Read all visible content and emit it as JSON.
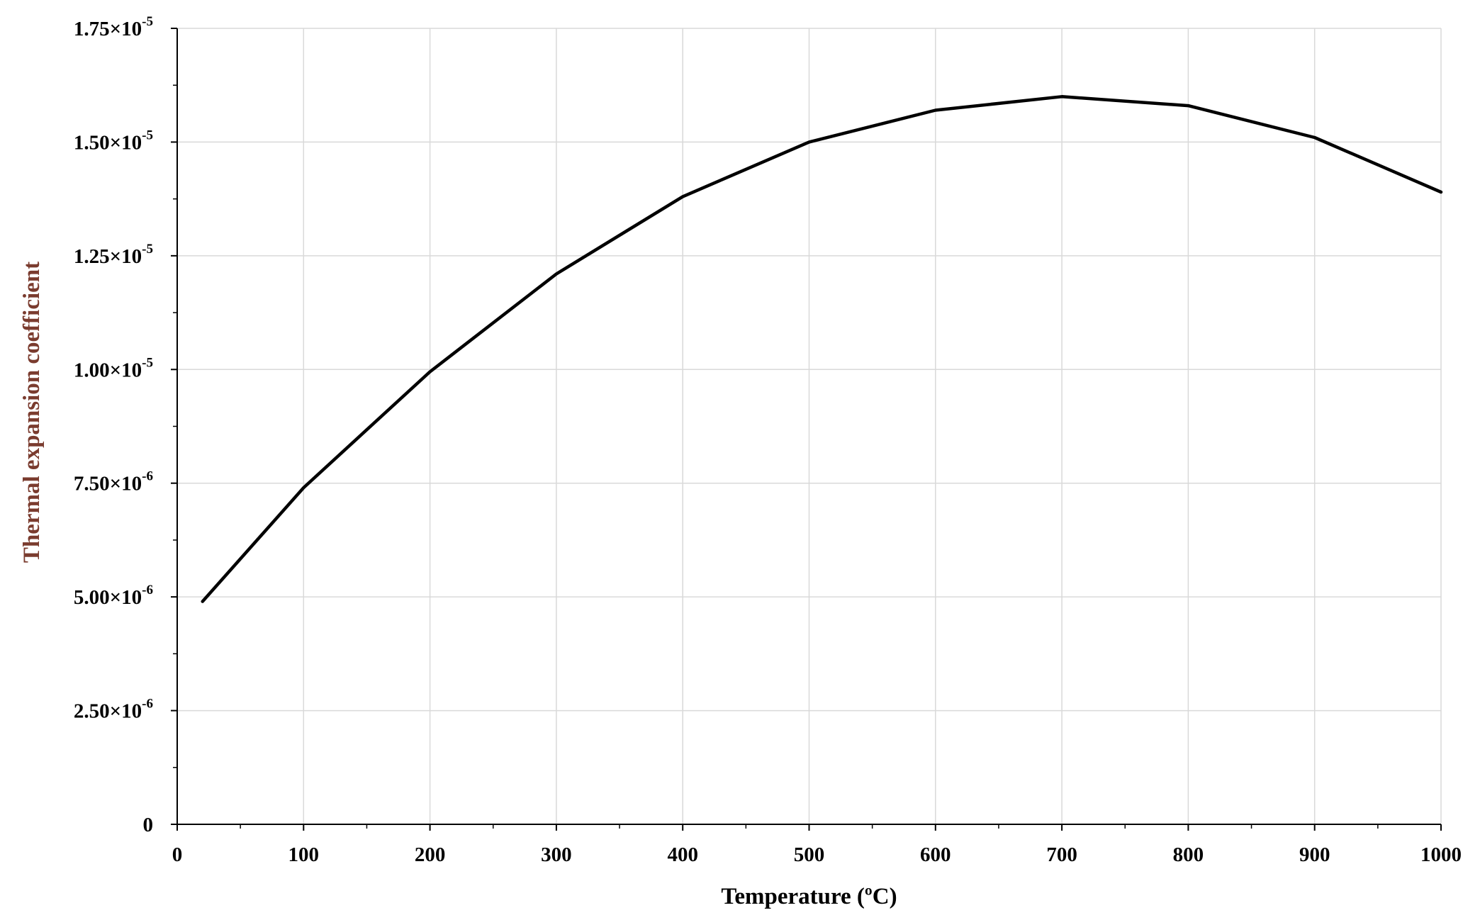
{
  "chart_data": {
    "type": "line",
    "xlabel": "Temperature (ºC)",
    "ylabel": "Thermal expansion coefficient",
    "xlim": [
      0,
      1000
    ],
    "ylim": [
      0,
      1.75e-05
    ],
    "grid": true,
    "x_ticks": [
      0,
      100,
      200,
      300,
      400,
      500,
      600,
      700,
      800,
      900,
      1000
    ],
    "x_tick_labels": [
      "0",
      "100",
      "200",
      "300",
      "400",
      "500",
      "600",
      "700",
      "800",
      "900",
      "1000"
    ],
    "y_ticks": [
      {
        "value": 0,
        "mantissa": "0",
        "exponent": ""
      },
      {
        "value": 2.5e-06,
        "mantissa": "2.50×10",
        "exponent": "-6"
      },
      {
        "value": 5e-06,
        "mantissa": "5.00×10",
        "exponent": "-6"
      },
      {
        "value": 7.5e-06,
        "mantissa": "7.50×10",
        "exponent": "-6"
      },
      {
        "value": 1e-05,
        "mantissa": "1.00×10",
        "exponent": "-5"
      },
      {
        "value": 1.25e-05,
        "mantissa": "1.25×10",
        "exponent": "-5"
      },
      {
        "value": 1.5e-05,
        "mantissa": "1.50×10",
        "exponent": "-5"
      },
      {
        "value": 1.75e-05,
        "mantissa": "1.75×10",
        "exponent": "-5"
      }
    ],
    "series": [
      {
        "x": [
          20,
          100,
          200,
          300,
          400,
          500,
          600,
          700,
          800,
          900,
          1000
        ],
        "y": [
          4.9e-06,
          7.4e-06,
          9.95e-06,
          1.21e-05,
          1.38e-05,
          1.5e-05,
          1.57e-05,
          1.6e-05,
          1.58e-05,
          1.51e-05,
          1.39e-05
        ]
      }
    ],
    "colors": {
      "line": "#000000",
      "grid": "#d9d9d9",
      "ylabel": "#7a3b2e"
    }
  }
}
